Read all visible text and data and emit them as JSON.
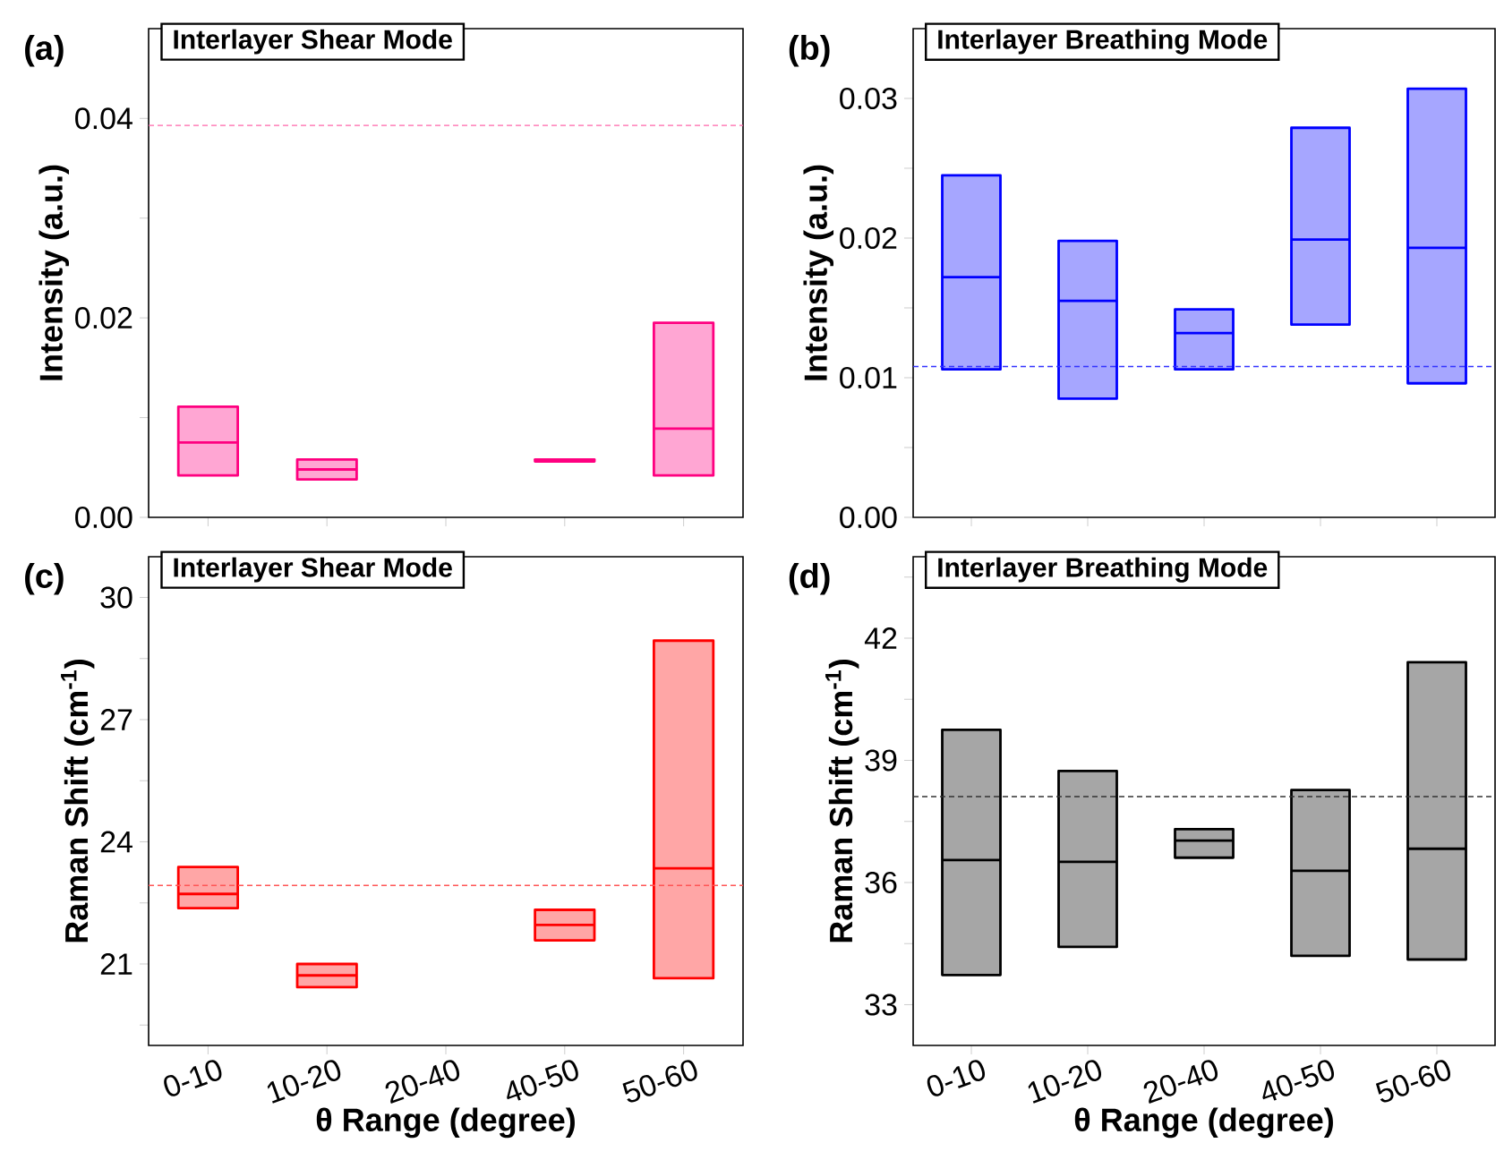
{
  "chart_data": [
    {
      "type": "box",
      "title": "Interlayer Shear Mode",
      "annotations": [
        "(a)"
      ],
      "ylabel": "Intensity (a.u.)",
      "categories": [
        null,
        null,
        null,
        null,
        null
      ],
      "tick_labels": "y",
      "color": "#ff0080",
      "boxes": [
        {
          "low": 0.0042,
          "q1": 0.0042,
          "median": 0.0075,
          "q3": 0.0111,
          "high": 0.0111
        },
        {
          "low": 0.0038,
          "q1": 0.0038,
          "median": 0.0048,
          "q3": 0.0058,
          "high": 0.0058
        },
        null,
        {
          "low": 0.0056,
          "q1": 0.0056,
          "median": 0.0057,
          "q3": 0.0058,
          "high": 0.0058
        },
        {
          "low": 0.0042,
          "q1": 0.0042,
          "median": 0.0089,
          "q3": 0.0195,
          "high": 0.0195
        }
      ],
      "ylim": [
        0,
        0.049
      ],
      "yticks": [
        {
          "value": 0,
          "label": "0.00"
        },
        {
          "value": 0.01,
          "label": null
        },
        0.02,
        {
          "value": 0.03,
          "label": null
        },
        0.04
      ],
      "ref_lines": [
        {
          "axis": "y",
          "value": 0.0393,
          "color": "#ff66aa",
          "line_style": "dashed"
        }
      ]
    },
    {
      "type": "box",
      "title": "Interlayer Breathing Mode",
      "annotations": [
        "(b)"
      ],
      "ylabel": "Intensity (a.u.)",
      "categories": [
        null,
        null,
        null,
        null,
        null
      ],
      "tick_labels": "y",
      "color": "#0000ff",
      "boxes": [
        {
          "low": 0.0106,
          "q1": 0.0106,
          "median": 0.0172,
          "q3": 0.0245,
          "high": 0.0245
        },
        {
          "low": 0.0085,
          "q1": 0.0085,
          "median": 0.0155,
          "q3": 0.0198,
          "high": 0.0198
        },
        {
          "low": 0.0106,
          "q1": 0.0106,
          "median": 0.0132,
          "q3": 0.0149,
          "high": 0.0149
        },
        {
          "low": 0.0138,
          "q1": 0.0138,
          "median": 0.0199,
          "q3": 0.0279,
          "high": 0.0279
        },
        {
          "low": 0.0096,
          "q1": 0.0096,
          "median": 0.0193,
          "q3": 0.0307,
          "high": 0.0307
        }
      ],
      "ylim": [
        0,
        0.035
      ],
      "yticks": [
        {
          "value": 0,
          "label": "0.00"
        },
        {
          "value": 0.005,
          "label": null
        },
        0.01,
        {
          "value": 0.015,
          "label": null
        },
        0.02,
        {
          "value": 0.025,
          "label": null
        },
        0.03
      ],
      "ref_lines": [
        {
          "axis": "y",
          "value": 0.0108,
          "color": "#3333ff",
          "line_style": "dashed"
        }
      ]
    },
    {
      "type": "box",
      "title": "Interlayer Shear Mode",
      "annotations": [
        "(c)"
      ],
      "ylabel": "Raman Shift (cm$^{-1}$)",
      "xlabel": "θ Range (degree)",
      "categories": [
        "0-10",
        "10-20",
        "20-40",
        "40-50",
        "50-60"
      ],
      "color": "#ff0000",
      "boxes": [
        {
          "low": 22.37,
          "q1": 22.37,
          "median": 22.72,
          "q3": 23.38,
          "high": 23.38
        },
        {
          "low": 20.43,
          "q1": 20.43,
          "median": 20.72,
          "q3": 21.0,
          "high": 21.0
        },
        null,
        {
          "low": 21.58,
          "q1": 21.58,
          "median": 21.96,
          "q3": 22.33,
          "high": 22.33
        },
        {
          "low": 20.65,
          "q1": 20.65,
          "median": 23.35,
          "q3": 28.94,
          "high": 28.94
        }
      ],
      "ylim": [
        19,
        31
      ],
      "yticks": [
        {
          "value": 19.5,
          "label": null
        },
        21,
        {
          "value": 22.5,
          "label": null
        },
        24,
        {
          "value": 25.5,
          "label": null
        },
        27,
        {
          "value": 28.5,
          "label": null
        },
        30
      ],
      "ref_lines": [
        {
          "axis": "y",
          "value": 22.93,
          "color": "#ff5555",
          "line_style": "dashed"
        }
      ]
    },
    {
      "type": "box",
      "title": "Interlayer Breathing Mode",
      "annotations": [
        "(d)"
      ],
      "ylabel": "Raman Shift (cm$^{-1}$)",
      "xlabel": "θ Range (degree)",
      "categories": [
        "0-10",
        "10-20",
        "20-40",
        "40-50",
        "50-60"
      ],
      "color": "#000000",
      "boxes": [
        {
          "low": 33.73,
          "q1": 33.73,
          "median": 36.55,
          "q3": 39.75,
          "high": 39.75
        },
        {
          "low": 34.42,
          "q1": 34.42,
          "median": 36.51,
          "q3": 38.74,
          "high": 38.74
        },
        {
          "low": 36.61,
          "q1": 36.61,
          "median": 37.03,
          "q3": 37.31,
          "high": 37.31
        },
        {
          "low": 34.2,
          "q1": 34.2,
          "median": 36.29,
          "q3": 38.27,
          "high": 38.27
        },
        {
          "low": 34.11,
          "q1": 34.11,
          "median": 36.83,
          "q3": 41.41,
          "high": 41.41
        }
      ],
      "ylim": [
        32,
        44
      ],
      "yticks": [
        {
          "value": 34.5,
          "label": null
        },
        33,
        36,
        {
          "value": 37.5,
          "label": null
        },
        39,
        {
          "value": 40.5,
          "label": null
        },
        42,
        {
          "value": 43.5,
          "label": null
        }
      ],
      "ref_lines": [
        {
          "axis": "y",
          "value": 38.11,
          "color": "#333333",
          "line_style": "dashed"
        }
      ]
    }
  ]
}
